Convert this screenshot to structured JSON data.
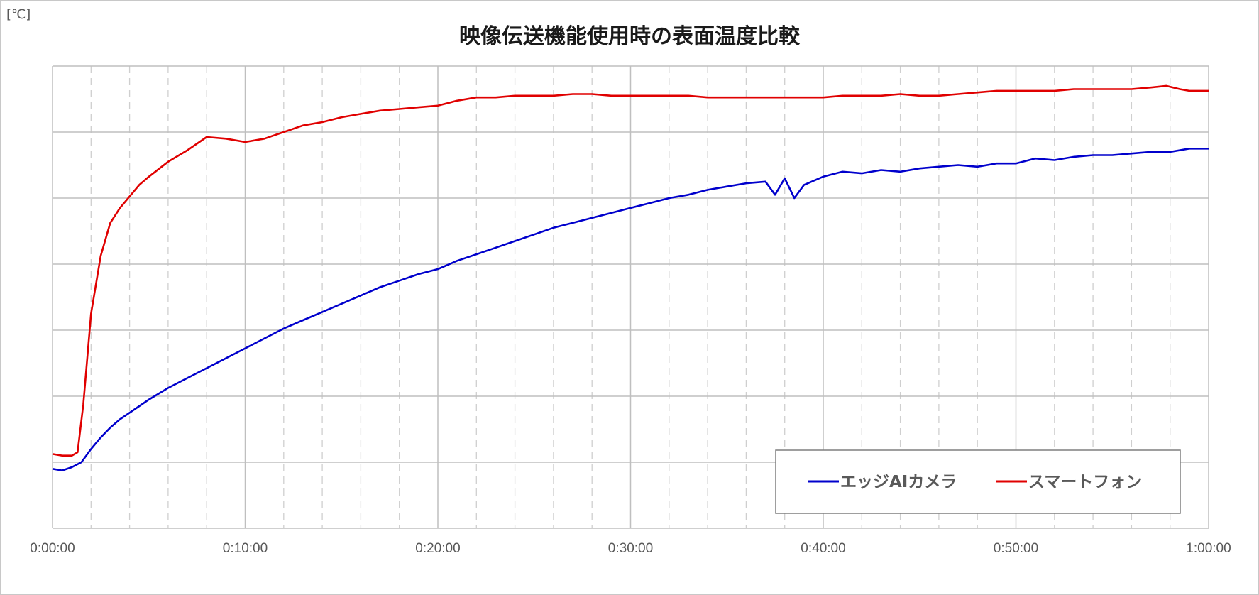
{
  "chart_data": {
    "type": "line",
    "title": "映像伝送機能使用時の表面温度比較",
    "unit_label": "[℃]",
    "x_ticks": [
      "0:00:00",
      "0:10:00",
      "0:20:00",
      "0:30:00",
      "0:40:00",
      "0:50:00",
      "1:00:00"
    ],
    "xlim_minutes": [
      0,
      60
    ],
    "y_major_gridlines": 7,
    "y_tick_labels_shown": false,
    "grid": {
      "x_major": true,
      "x_minor_dashed": true,
      "y_major": true
    },
    "legend_position": "bottom-right",
    "series": [
      {
        "name": "エッジAIカメラ",
        "color": "#0000cc",
        "points": [
          [
            0,
            30.6
          ],
          [
            0.5,
            30.5
          ],
          [
            1,
            30.7
          ],
          [
            1.5,
            31.0
          ],
          [
            2,
            31.8
          ],
          [
            2.5,
            32.5
          ],
          [
            3,
            33.1
          ],
          [
            3.5,
            33.6
          ],
          [
            4,
            34.0
          ],
          [
            4.5,
            34.4
          ],
          [
            5,
            34.8
          ],
          [
            6,
            35.5
          ],
          [
            7,
            36.1
          ],
          [
            8,
            36.7
          ],
          [
            9,
            37.3
          ],
          [
            10,
            37.9
          ],
          [
            11,
            38.5
          ],
          [
            12,
            39.1
          ],
          [
            13,
            39.6
          ],
          [
            14,
            40.1
          ],
          [
            15,
            40.6
          ],
          [
            16,
            41.1
          ],
          [
            17,
            41.6
          ],
          [
            18,
            42.0
          ],
          [
            19,
            42.4
          ],
          [
            20,
            42.7
          ],
          [
            21,
            43.2
          ],
          [
            22,
            43.6
          ],
          [
            23,
            44.0
          ],
          [
            24,
            44.4
          ],
          [
            25,
            44.8
          ],
          [
            26,
            45.2
          ],
          [
            27,
            45.5
          ],
          [
            28,
            45.8
          ],
          [
            29,
            46.1
          ],
          [
            30,
            46.4
          ],
          [
            31,
            46.7
          ],
          [
            32,
            47.0
          ],
          [
            33,
            47.2
          ],
          [
            34,
            47.5
          ],
          [
            35,
            47.7
          ],
          [
            36,
            47.9
          ],
          [
            37,
            48.0
          ],
          [
            37.5,
            47.2
          ],
          [
            38,
            48.2
          ],
          [
            38.5,
            47.0
          ],
          [
            39,
            47.8
          ],
          [
            40,
            48.3
          ],
          [
            41,
            48.6
          ],
          [
            42,
            48.5
          ],
          [
            43,
            48.7
          ],
          [
            44,
            48.6
          ],
          [
            45,
            48.8
          ],
          [
            46,
            48.9
          ],
          [
            47,
            49.0
          ],
          [
            48,
            48.9
          ],
          [
            49,
            49.1
          ],
          [
            50,
            49.1
          ],
          [
            51,
            49.4
          ],
          [
            52,
            49.3
          ],
          [
            53,
            49.5
          ],
          [
            54,
            49.6
          ],
          [
            55,
            49.6
          ],
          [
            56,
            49.7
          ],
          [
            57,
            49.8
          ],
          [
            58,
            49.8
          ],
          [
            59,
            50.0
          ],
          [
            60,
            50.0
          ]
        ]
      },
      {
        "name": "スマートフォン",
        "color": "#e00000",
        "points": [
          [
            0,
            31.5
          ],
          [
            0.5,
            31.4
          ],
          [
            1,
            31.4
          ],
          [
            1.3,
            31.6
          ],
          [
            1.6,
            34.5
          ],
          [
            2,
            40.0
          ],
          [
            2.5,
            43.5
          ],
          [
            3,
            45.5
          ],
          [
            3.5,
            46.4
          ],
          [
            4,
            47.1
          ],
          [
            4.5,
            47.8
          ],
          [
            5,
            48.3
          ],
          [
            6,
            49.2
          ],
          [
            7,
            49.9
          ],
          [
            8,
            50.7
          ],
          [
            9,
            50.6
          ],
          [
            10,
            50.4
          ],
          [
            11,
            50.6
          ],
          [
            12,
            51.0
          ],
          [
            13,
            51.4
          ],
          [
            14,
            51.6
          ],
          [
            15,
            51.9
          ],
          [
            16,
            52.1
          ],
          [
            17,
            52.3
          ],
          [
            18,
            52.4
          ],
          [
            19,
            52.5
          ],
          [
            20,
            52.6
          ],
          [
            21,
            52.9
          ],
          [
            22,
            53.1
          ],
          [
            23,
            53.1
          ],
          [
            24,
            53.2
          ],
          [
            25,
            53.2
          ],
          [
            26,
            53.2
          ],
          [
            27,
            53.3
          ],
          [
            28,
            53.3
          ],
          [
            29,
            53.2
          ],
          [
            30,
            53.2
          ],
          [
            31,
            53.2
          ],
          [
            32,
            53.2
          ],
          [
            33,
            53.2
          ],
          [
            34,
            53.1
          ],
          [
            35,
            53.1
          ],
          [
            36,
            53.1
          ],
          [
            37,
            53.1
          ],
          [
            38,
            53.1
          ],
          [
            39,
            53.1
          ],
          [
            40,
            53.1
          ],
          [
            41,
            53.2
          ],
          [
            42,
            53.2
          ],
          [
            43,
            53.2
          ],
          [
            44,
            53.3
          ],
          [
            45,
            53.2
          ],
          [
            46,
            53.2
          ],
          [
            47,
            53.3
          ],
          [
            48,
            53.4
          ],
          [
            49,
            53.5
          ],
          [
            50,
            53.5
          ],
          [
            51,
            53.5
          ],
          [
            52,
            53.5
          ],
          [
            53,
            53.6
          ],
          [
            54,
            53.6
          ],
          [
            55,
            53.6
          ],
          [
            56,
            53.6
          ],
          [
            57,
            53.7
          ],
          [
            57.8,
            53.8
          ],
          [
            58.5,
            53.6
          ],
          [
            59,
            53.5
          ],
          [
            60,
            53.5
          ]
        ]
      }
    ]
  }
}
